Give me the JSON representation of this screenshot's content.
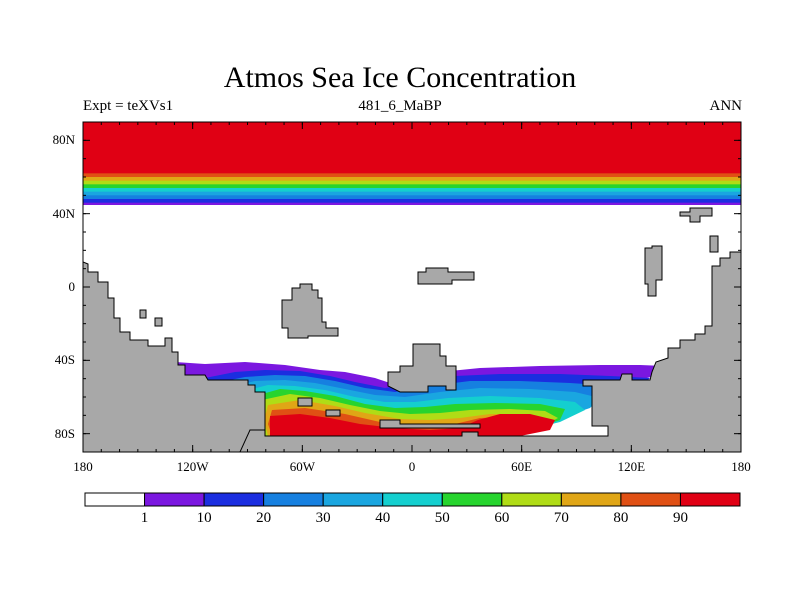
{
  "chart_data": {
    "type": "heatmap",
    "title": "Atmos Sea Ice Concentration",
    "subtitle_left": "Expt = teXVs1",
    "subtitle_center": "481_6_MaBP",
    "subtitle_right": "ANN",
    "xlim": [
      -180,
      180
    ],
    "ylim": [
      -90,
      90
    ],
    "x_ticks": [
      {
        "value": -180,
        "label": "180"
      },
      {
        "value": -120,
        "label": "120W"
      },
      {
        "value": -60,
        "label": "60W"
      },
      {
        "value": 0,
        "label": "0"
      },
      {
        "value": 60,
        "label": "60E"
      },
      {
        "value": 120,
        "label": "120E"
      },
      {
        "value": 180,
        "label": "180"
      }
    ],
    "y_ticks": [
      {
        "value": 80,
        "label": "80N"
      },
      {
        "value": 40,
        "label": "40N"
      },
      {
        "value": 0,
        "label": "0"
      },
      {
        "value": -40,
        "label": "40S"
      },
      {
        "value": -80,
        "label": "80S"
      }
    ],
    "colorbar": {
      "colors": [
        "#ffffff",
        "#7b17e0",
        "#1b2ee0",
        "#1680e0",
        "#1aa6e0",
        "#14cfcf",
        "#27d42e",
        "#b0dc16",
        "#e0a616",
        "#e05014",
        "#e00014"
      ],
      "labels": [
        "1",
        "10",
        "20",
        "30",
        "40",
        "50",
        "60",
        "70",
        "80",
        "90"
      ]
    },
    "land_color": "#a8a8a8",
    "north_ice_rows": [
      {
        "lat_top": 90,
        "lat_bottom": 62,
        "level": 10
      },
      {
        "lat_top": 62,
        "lat_bottom": 60,
        "level": 9
      },
      {
        "lat_top": 60,
        "lat_bottom": 58,
        "level": 8
      },
      {
        "lat_top": 58,
        "lat_bottom": 56,
        "level": 7
      },
      {
        "lat_top": 56,
        "lat_bottom": 54,
        "level": 6
      },
      {
        "lat_top": 54,
        "lat_bottom": 52,
        "level": 5
      },
      {
        "lat_top": 52,
        "lat_bottom": 50,
        "level": 4
      },
      {
        "lat_top": 50,
        "lat_bottom": 48,
        "level": 3
      },
      {
        "lat_top": 48,
        "lat_bottom": 46,
        "level": 2
      },
      {
        "lat_top": 46,
        "lat_bottom": 45,
        "level": 1
      }
    ]
  }
}
